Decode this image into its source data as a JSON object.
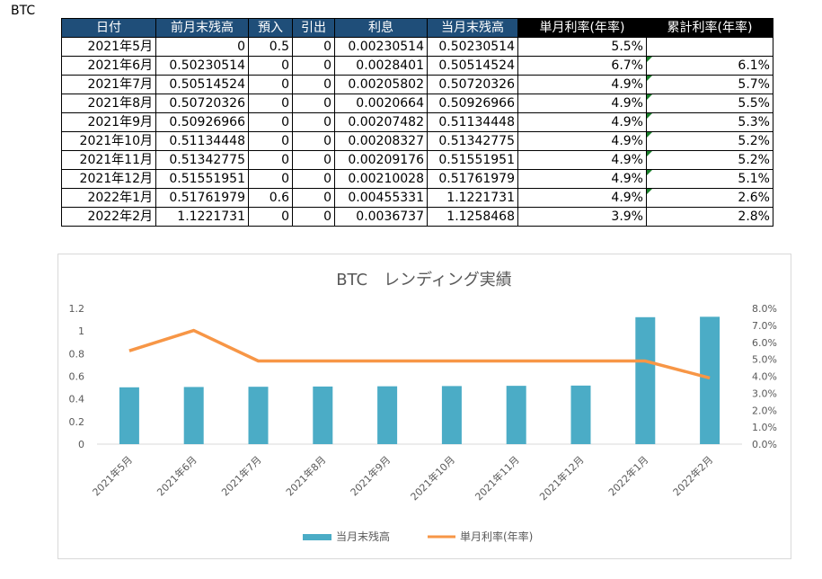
{
  "sheet_label": "BTC",
  "table": {
    "headers": [
      "日付",
      "前月末残高",
      "預入",
      "引出",
      "利息",
      "当月末残高",
      "単月利率(年率)",
      "累計利率(年率)"
    ],
    "rows": [
      [
        "2021年5月",
        "0",
        "0.5",
        "0",
        "0.00230514",
        "0.50230514",
        "5.5%",
        ""
      ],
      [
        "2021年6月",
        "0.50230514",
        "0",
        "0",
        "0.0028401",
        "0.50514524",
        "6.7%",
        "6.1%"
      ],
      [
        "2021年7月",
        "0.50514524",
        "0",
        "0",
        "0.00205802",
        "0.50720326",
        "4.9%",
        "5.7%"
      ],
      [
        "2021年8月",
        "0.50720326",
        "0",
        "0",
        "0.0020664",
        "0.50926966",
        "4.9%",
        "5.5%"
      ],
      [
        "2021年9月",
        "0.50926966",
        "0",
        "0",
        "0.00207482",
        "0.51134448",
        "4.9%",
        "5.3%"
      ],
      [
        "2021年10月",
        "0.51134448",
        "0",
        "0",
        "0.00208327",
        "0.51342775",
        "4.9%",
        "5.2%"
      ],
      [
        "2021年11月",
        "0.51342775",
        "0",
        "0",
        "0.00209176",
        "0.51551951",
        "4.9%",
        "5.2%"
      ],
      [
        "2021年12月",
        "0.51551951",
        "0",
        "0",
        "0.00210028",
        "0.51761979",
        "4.9%",
        "5.1%"
      ],
      [
        "2022年1月",
        "0.51761979",
        "0.6",
        "0",
        "0.00455331",
        "1.1221731",
        "4.9%",
        "2.6%"
      ],
      [
        "2022年2月",
        "1.1221731",
        "0",
        "0",
        "0.0036737",
        "1.1258468",
        "3.9%",
        "2.8%"
      ]
    ]
  },
  "chart_data": {
    "type": "bar",
    "title": "BTC　レンディング実績",
    "categories": [
      "2021年5月",
      "2021年6月",
      "2021年7月",
      "2021年8月",
      "2021年9月",
      "2021年10月",
      "2021年11月",
      "2021年12月",
      "2022年1月",
      "2022年2月"
    ],
    "series": [
      {
        "name": "当月末残高",
        "type": "bar",
        "axis": "left",
        "color": "#4bacc6",
        "values": [
          0.50230514,
          0.50514524,
          0.50720326,
          0.50926966,
          0.51134448,
          0.51342775,
          0.51551951,
          0.51761979,
          1.1221731,
          1.1258468
        ]
      },
      {
        "name": "単月利率(年率)",
        "type": "line",
        "axis": "right",
        "color": "#f79646",
        "values": [
          0.055,
          0.067,
          0.049,
          0.049,
          0.049,
          0.049,
          0.049,
          0.049,
          0.049,
          0.039
        ]
      }
    ],
    "ylim": [
      0,
      1.2
    ],
    "yticks": [
      "0",
      "0.2",
      "0.4",
      "0.6",
      "0.8",
      "1",
      "1.2"
    ],
    "y2lim": [
      0,
      0.08
    ],
    "y2ticks": [
      "0.0%",
      "1.0%",
      "2.0%",
      "3.0%",
      "4.0%",
      "5.0%",
      "6.0%",
      "7.0%",
      "8.0%"
    ],
    "legend_position": "bottom",
    "grid": false
  }
}
